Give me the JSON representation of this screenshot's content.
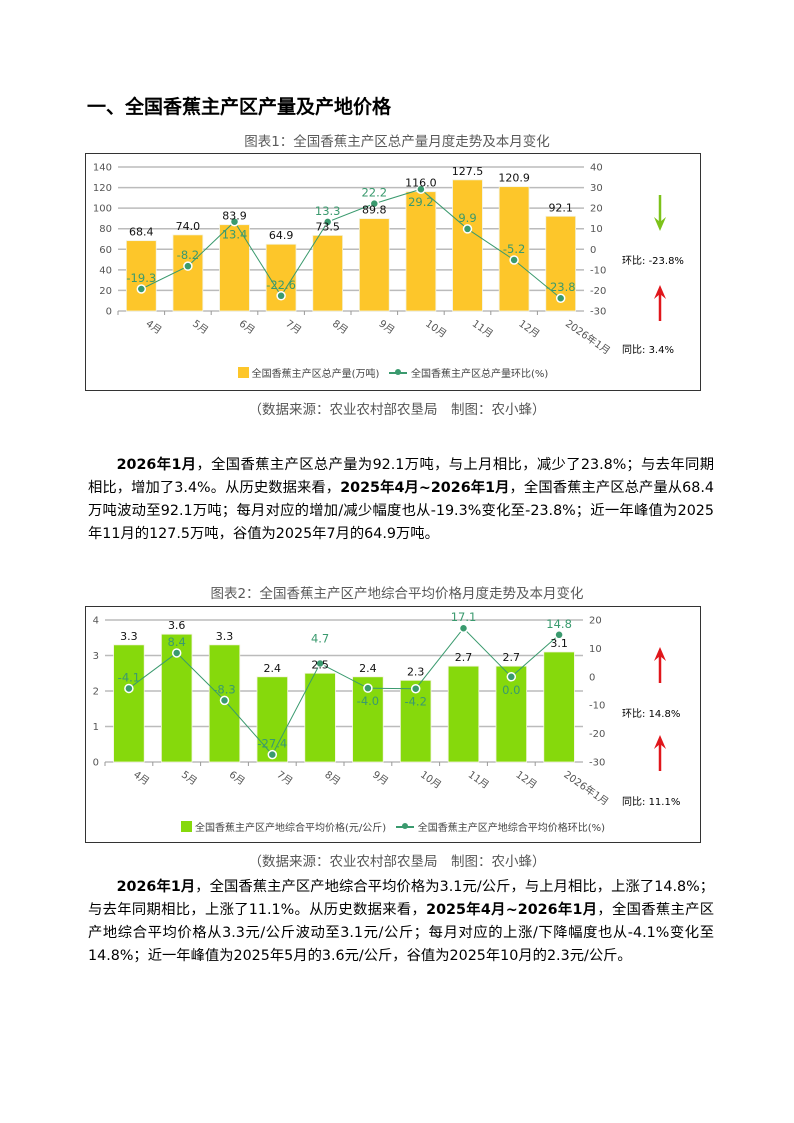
{
  "heading": "一、全国香蕉主产区产量及产地价格",
  "colors": {
    "bar1": "#FDC62A",
    "bar2": "#86D90C",
    "line": "#3A9A6E",
    "down_arrow": "#7DC21A",
    "up_arrow": "#E0161B"
  },
  "chart_data": [
    {
      "type": "bar",
      "title": "图表1：全国香蕉主产区总产量月度走势及本月变化",
      "categories": [
        "4月",
        "5月",
        "6月",
        "7月",
        "8月",
        "9月",
        "10月",
        "11月",
        "12月",
        "2026年1月"
      ],
      "series": [
        {
          "name": "全国香蕉主产区总产量(万吨)",
          "type": "bar",
          "axis": "left",
          "values": [
            68.4,
            74.0,
            83.9,
            64.9,
            73.5,
            89.8,
            116.0,
            127.5,
            120.9,
            92.1
          ]
        },
        {
          "name": "全国香蕉主产区总产量环比(%)",
          "type": "line",
          "axis": "right",
          "values": [
            -19.3,
            -8.2,
            13.4,
            -22.6,
            13.3,
            22.2,
            29.2,
            9.9,
            -5.2,
            -23.8
          ]
        }
      ],
      "ylim": [
        0,
        140
      ],
      "yticks": [
        "0",
        "20",
        "40",
        "60",
        "80",
        "100",
        "120",
        "140"
      ],
      "y2lim": [
        -30,
        40
      ],
      "y2ticks": [
        "-30",
        "-20",
        "-10",
        "0",
        "10",
        "20",
        "30",
        "40"
      ],
      "grid": true,
      "legend": "bottom",
      "side": {
        "mom_label": "环比:",
        "mom_value": "-23.8%",
        "mom_dir": "down",
        "yoy_label": "同比:",
        "yoy_value": "3.4%",
        "yoy_dir": "up"
      },
      "source": "（数据来源：农业农村部农垦局　制图：农小蜂）"
    },
    {
      "type": "bar",
      "title": "图表2：全国香蕉主产区产地综合平均价格月度走势及本月变化",
      "categories": [
        "4月",
        "5月",
        "6月",
        "7月",
        "8月",
        "9月",
        "10月",
        "11月",
        "12月",
        "2026年1月"
      ],
      "series": [
        {
          "name": "全国香蕉主产区产地综合平均价格(元/公斤)",
          "type": "bar",
          "axis": "left",
          "values": [
            3.3,
            3.6,
            3.3,
            2.4,
            2.5,
            2.4,
            2.3,
            2.7,
            2.7,
            3.1
          ]
        },
        {
          "name": "全国香蕉主产区产地综合平均价格环比(%)",
          "type": "line",
          "axis": "right",
          "values": [
            -4.1,
            8.4,
            -8.3,
            -27.4,
            4.7,
            -4.0,
            -4.2,
            17.1,
            0.0,
            14.8
          ]
        }
      ],
      "ylim": [
        0,
        4
      ],
      "yticks": [
        "0",
        "1",
        "2",
        "3",
        "4"
      ],
      "y2lim": [
        -30,
        20
      ],
      "y2ticks": [
        "-30",
        "-20",
        "-10",
        "0",
        "10",
        "20"
      ],
      "grid": true,
      "legend": "bottom",
      "side": {
        "mom_label": "环比:",
        "mom_value": "14.8%",
        "mom_dir": "up",
        "yoy_label": "同比:",
        "yoy_value": "11.1%",
        "yoy_dir": "up"
      },
      "source": "（数据来源：农业农村部农垦局　制图：农小蜂）"
    }
  ],
  "paragraphs": [
    {
      "b1": "2026年1月",
      "t1": "，全国香蕉主产区总产量为92.1万吨，与上月相比，减少了23.8%；与去年同期相比，增加了3.4%。从历史数据来看，",
      "b2": "2025年4月~2026年1月",
      "t2": "，全国香蕉主产区总产量从68.4万吨波动至92.1万吨；每月对应的增加/减少幅度也从-19.3%变化至-23.8%；近一年峰值为2025年11月的127.5万吨，谷值为2025年7月的64.9万吨。"
    },
    {
      "b1": "2026年1月",
      "t1": "，全国香蕉主产区产地综合平均价格为3.1元/公斤，与上月相比，上涨了14.8%；与去年同期相比，上涨了11.1%。从历史数据来看，",
      "b2": "2025年4月~2026年1月",
      "t2": "，全国香蕉主产区产地综合平均价格从3.3元/公斤波动至3.1元/公斤；每月对应的上涨/下降幅度也从-4.1%变化至14.8%；近一年峰值为2025年5月的3.6元/公斤，谷值为2025年10月的2.3元/公斤。"
    }
  ]
}
